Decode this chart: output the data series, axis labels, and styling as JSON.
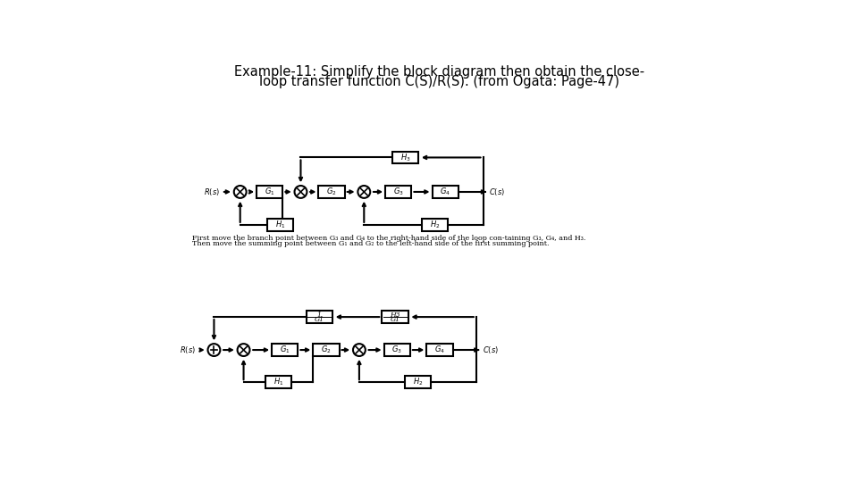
{
  "title_line1": "Example-11: Simplify the block diagram then obtain the close-",
  "title_line2": "loop transfer function C(S)/R(S). (from Ogata: Page-47)",
  "bg_color": "#ffffff",
  "line_color": "#000000",
  "lw": 1.5,
  "note_line1": "First move the branch point between G₃ and G₄ to the right-hand side of the loop con-taining G₃, G₄, and H₃.",
  "note_line2": "Then move the summing point between G₁ and G₂ to the left-hand side of the first summing point."
}
